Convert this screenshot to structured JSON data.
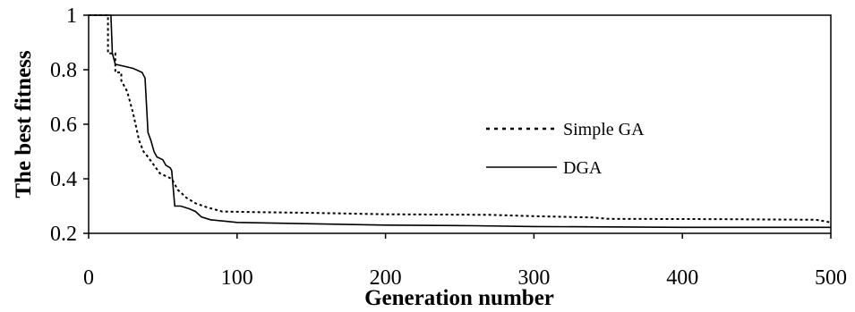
{
  "chart_data": {
    "type": "line",
    "title": "",
    "xlabel": "Generation number",
    "ylabel": "The best fitness",
    "xlim": [
      0,
      500
    ],
    "ylim": [
      0.2,
      1
    ],
    "xticks": [
      "0",
      "100",
      "200",
      "300",
      "400",
      "500"
    ],
    "yticks": [
      "0.2",
      "0.4",
      "0.6",
      "0.8",
      "1"
    ],
    "grid": false,
    "legend_position": "center-right",
    "series": [
      {
        "name": "Simple GA",
        "style": "dotted",
        "color": "#000000",
        "points": [
          [
            0,
            1.0
          ],
          [
            13,
            1.0
          ],
          [
            13,
            0.86
          ],
          [
            18,
            0.86
          ],
          [
            18,
            0.79
          ],
          [
            22,
            0.79
          ],
          [
            22,
            0.76
          ],
          [
            26,
            0.72
          ],
          [
            30,
            0.64
          ],
          [
            34,
            0.54
          ],
          [
            37,
            0.5
          ],
          [
            40,
            0.48
          ],
          [
            44,
            0.45
          ],
          [
            48,
            0.42
          ],
          [
            52,
            0.41
          ],
          [
            56,
            0.4
          ],
          [
            60,
            0.36
          ],
          [
            66,
            0.33
          ],
          [
            72,
            0.31
          ],
          [
            80,
            0.295
          ],
          [
            90,
            0.28
          ],
          [
            110,
            0.278
          ],
          [
            150,
            0.275
          ],
          [
            200,
            0.27
          ],
          [
            270,
            0.268
          ],
          [
            300,
            0.263
          ],
          [
            340,
            0.258
          ],
          [
            350,
            0.253
          ],
          [
            420,
            0.252
          ],
          [
            490,
            0.25
          ],
          [
            500,
            0.24
          ]
        ]
      },
      {
        "name": "DGA",
        "style": "solid",
        "color": "#000000",
        "points": [
          [
            0,
            1.0
          ],
          [
            15,
            1.0
          ],
          [
            16,
            0.86
          ],
          [
            18,
            0.82
          ],
          [
            22,
            0.815
          ],
          [
            30,
            0.805
          ],
          [
            36,
            0.79
          ],
          [
            38,
            0.77
          ],
          [
            40,
            0.57
          ],
          [
            42,
            0.54
          ],
          [
            44,
            0.5
          ],
          [
            46,
            0.48
          ],
          [
            50,
            0.47
          ],
          [
            52,
            0.45
          ],
          [
            55,
            0.44
          ],
          [
            56,
            0.43
          ],
          [
            58,
            0.3
          ],
          [
            62,
            0.3
          ],
          [
            68,
            0.29
          ],
          [
            72,
            0.28
          ],
          [
            76,
            0.26
          ],
          [
            82,
            0.25
          ],
          [
            100,
            0.24
          ],
          [
            150,
            0.235
          ],
          [
            200,
            0.23
          ],
          [
            260,
            0.228
          ],
          [
            300,
            0.225
          ],
          [
            400,
            0.222
          ],
          [
            500,
            0.222
          ]
        ]
      }
    ]
  }
}
